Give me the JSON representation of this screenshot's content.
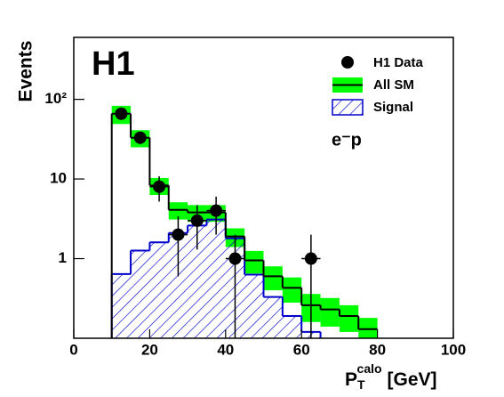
{
  "chart_data": {
    "type": "histogram",
    "title": "H1",
    "annotation": "e⁻p",
    "ylabel": "Events",
    "xlabel": {
      "base": "P",
      "sub": "T",
      "sup": "calo",
      "unit": "[GeV]"
    },
    "xlim": [
      0,
      100
    ],
    "xticks": [
      0,
      20,
      40,
      60,
      80,
      100
    ],
    "ylim": [
      0.1,
      600
    ],
    "log_y": true,
    "yticks": [
      1,
      10,
      {
        "value": 100,
        "label": "10²"
      }
    ],
    "bins": [
      10,
      15,
      20,
      25,
      30,
      35,
      40,
      45,
      50,
      55,
      60,
      65,
      70,
      75,
      80
    ],
    "series": [
      {
        "name": "All SM",
        "color": "#000000",
        "band_color": "#00ff00",
        "values": [
          66,
          33,
          8.3,
          4.1,
          3.8,
          3.8,
          1.9,
          0.95,
          0.6,
          0.43,
          0.26,
          0.23,
          0.19,
          0.13
        ],
        "errors": [
          17,
          8,
          2,
          1,
          0.9,
          0.9,
          0.5,
          0.3,
          0.2,
          0.15,
          0.1,
          0.09,
          0.07,
          0.05
        ]
      },
      {
        "name": "Signal",
        "color": "#0000cc",
        "values": [
          0.64,
          1.26,
          1.6,
          2.1,
          2.6,
          3.1,
          1.8,
          0.63,
          0.33,
          0.19,
          0.12,
          0.08,
          0.08,
          0.08
        ]
      },
      {
        "name": "H1 Data",
        "color": "#000000",
        "x": [
          12.5,
          17.5,
          22.5,
          27.5,
          32.5,
          37.5,
          42.5,
          62.5
        ],
        "values": [
          66,
          33,
          8,
          2,
          3,
          4,
          1,
          1
        ],
        "errors": [
          8.1,
          5.7,
          2.8,
          1.4,
          1.7,
          2,
          1,
          1
        ]
      }
    ]
  }
}
